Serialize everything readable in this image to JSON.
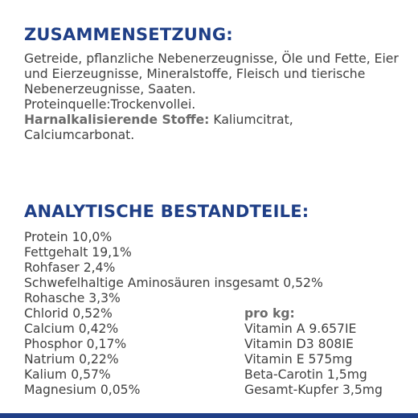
{
  "composition": {
    "heading": "ZUSAMMENSETZUNG:",
    "text": "Getreide, pflanzliche Nebenerzeugnisse, Öle und Fette, Eier und Eierzeugnisse, Mineralstoffe, Fleisch und tierische Nebenerzeugnisse, Saaten.",
    "protein_source": "Proteinquelle:Trockenvollei.",
    "urinary_label": "Harnalkalisierende Stoffe:",
    "urinary_value": " Kaliumcitrat, Calciumcarbonat."
  },
  "analysis": {
    "heading": "ANALYTISCHE BESTANDTEILE:",
    "items": [
      "Protein 10,0%",
      "Fettgehalt 19,1%",
      "Rohfaser 2,4%",
      "Schwefelhaltige Aminosäuren insgesamt 0,52%",
      "Rohasche 3,3%",
      "Chlorid 0,52%",
      "Calcium 0,42%",
      "Phosphor 0,17%",
      "Natrium 0,22%",
      "Kalium 0,57%",
      "Magnesium 0,05%"
    ],
    "per_kg_label": "pro kg:",
    "per_kg_items": [
      "Vitamin A 9.657IE",
      "Vitamin D3 808IE",
      "Vitamin E 575mg",
      "Beta-Carotin 1,5mg",
      "Gesamt-Kupfer 3,5mg"
    ]
  },
  "colors": {
    "heading": "#1f3f87",
    "text": "#404040",
    "bold_label": "#6b6b6b",
    "bottom_bar": "#1f3f87"
  }
}
